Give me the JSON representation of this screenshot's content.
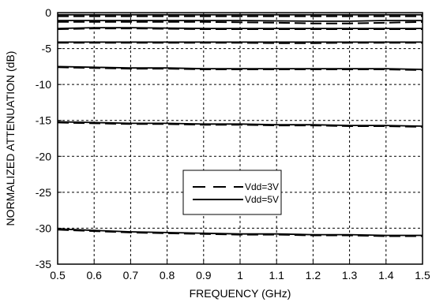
{
  "chart_data": {
    "type": "line",
    "xlabel": "FREQUENCY (GHz)",
    "ylabel": "NORMALIZED ATTENUATION (dB)",
    "xlim": [
      0.5,
      1.5
    ],
    "ylim": [
      -35,
      0
    ],
    "x_ticks": [
      "0.5",
      "0.6",
      "0.7",
      "0.8",
      "0.9",
      "1",
      "1.1",
      "1.2",
      "1.3",
      "1.4",
      "1.5"
    ],
    "y_ticks": [
      "0",
      "-5",
      "-10",
      "-15",
      "-20",
      "-25",
      "-30",
      "-35"
    ],
    "x_tick_values": [
      0.5,
      0.6,
      0.7,
      0.8,
      0.9,
      1.0,
      1.1,
      1.2,
      1.3,
      1.4,
      1.5
    ],
    "y_tick_values": [
      0,
      -5,
      -10,
      -15,
      -20,
      -25,
      -30,
      -35
    ],
    "grid": true,
    "legend_position": "center-right",
    "legend": [
      {
        "label": "Vdd=3V",
        "style": "dashed"
      },
      {
        "label": "Vdd=5V",
        "style": "solid"
      }
    ],
    "x": [
      0.5,
      0.6,
      0.7,
      0.8,
      0.9,
      1.0,
      1.1,
      1.2,
      1.3,
      1.4,
      1.5
    ],
    "series": [
      {
        "style": "solid",
        "values": [
          -0.3,
          -0.3,
          -0.3,
          -0.3,
          -0.3,
          -0.3,
          -0.3,
          -0.3,
          -0.3,
          -0.3,
          -0.3
        ]
      },
      {
        "style": "dashed",
        "values": [
          -0.5,
          -0.5,
          -0.5,
          -0.5,
          -0.5,
          -0.5,
          -0.5,
          -0.5,
          -0.5,
          -0.5,
          -0.5
        ]
      },
      {
        "style": "solid",
        "values": [
          -1.1,
          -1.1,
          -1.1,
          -1.1,
          -1.1,
          -1.1,
          -1.15,
          -1.2,
          -1.2,
          -1.1,
          -1.1
        ]
      },
      {
        "style": "dashed",
        "values": [
          -1.3,
          -1.3,
          -1.3,
          -1.3,
          -1.3,
          -1.35,
          -1.4,
          -1.5,
          -1.5,
          -1.4,
          -1.3
        ]
      },
      {
        "style": "solid",
        "values": [
          -2.2,
          -2.1,
          -2.1,
          -2.15,
          -2.2,
          -2.2,
          -2.2,
          -2.2,
          -2.2,
          -2.2,
          -2.2
        ]
      },
      {
        "style": "dashed",
        "values": [
          -2.3,
          -2.2,
          -2.2,
          -2.25,
          -2.3,
          -2.3,
          -2.3,
          -2.3,
          -2.3,
          -2.3,
          -2.3
        ]
      },
      {
        "style": "solid",
        "values": [
          -4.1,
          -4.1,
          -4.1,
          -4.1,
          -4.1,
          -4.1,
          -4.1,
          -4.1,
          -4.1,
          -4.1,
          -4.1
        ]
      },
      {
        "style": "dashed",
        "values": [
          -4.2,
          -4.2,
          -4.2,
          -4.2,
          -4.2,
          -4.2,
          -4.25,
          -4.25,
          -4.2,
          -4.2,
          -4.2
        ]
      },
      {
        "style": "solid",
        "values": [
          -7.5,
          -7.6,
          -7.7,
          -7.7,
          -7.8,
          -7.8,
          -7.8,
          -7.8,
          -7.8,
          -7.8,
          -7.9
        ]
      },
      {
        "style": "dashed",
        "values": [
          -7.6,
          -7.7,
          -7.8,
          -7.8,
          -7.9,
          -7.9,
          -7.9,
          -7.9,
          -7.9,
          -7.9,
          -8.0
        ]
      },
      {
        "style": "solid",
        "values": [
          -15.2,
          -15.3,
          -15.4,
          -15.4,
          -15.5,
          -15.5,
          -15.6,
          -15.6,
          -15.7,
          -15.7,
          -15.8
        ]
      },
      {
        "style": "dashed",
        "values": [
          -15.3,
          -15.4,
          -15.5,
          -15.5,
          -15.6,
          -15.6,
          -15.7,
          -15.7,
          -15.8,
          -15.8,
          -15.9
        ]
      },
      {
        "style": "solid",
        "values": [
          -30.1,
          -30.3,
          -30.5,
          -30.6,
          -30.7,
          -30.8,
          -30.8,
          -30.9,
          -30.9,
          -31.0,
          -31.0
        ]
      },
      {
        "style": "dashed",
        "values": [
          -30.2,
          -30.4,
          -30.6,
          -30.7,
          -30.8,
          -30.9,
          -30.9,
          -31.0,
          -31.0,
          -31.1,
          -31.1
        ]
      }
    ]
  }
}
